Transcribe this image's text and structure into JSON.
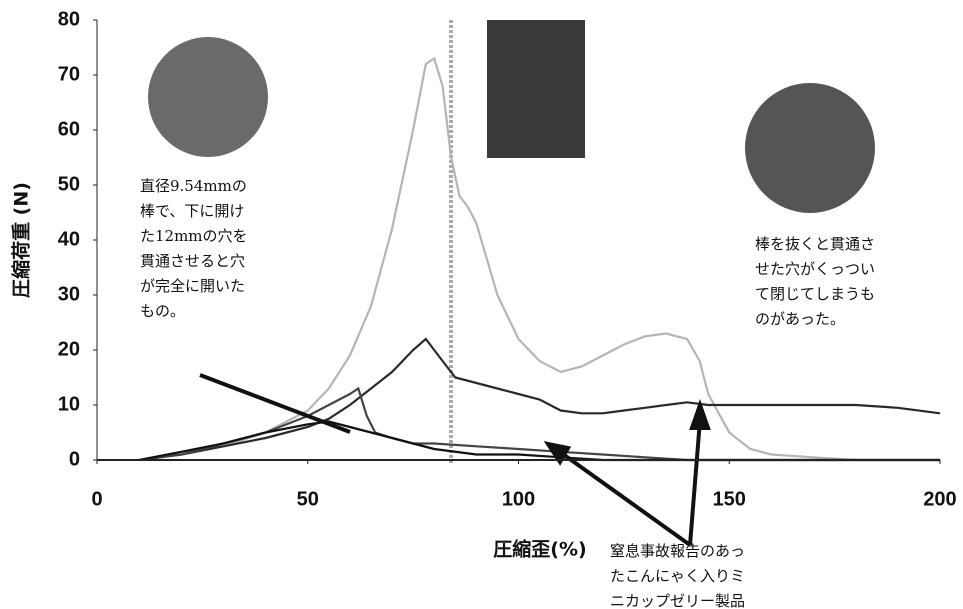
{
  "chart_data": {
    "type": "line",
    "y_label": "圧縮荷重 (N)",
    "x_label": "圧縮歪(%)",
    "xlim": [
      0,
      200
    ],
    "xticks": [
      0,
      50,
      100,
      150,
      200
    ],
    "ylim": [
      0,
      80
    ],
    "yticks": [
      0,
      10,
      20,
      30,
      40,
      50,
      60,
      70,
      80
    ],
    "series": [
      {
        "color": "#b5b5b5",
        "x": [
          10,
          20,
          30,
          40,
          50,
          55,
          60,
          65,
          70,
          75,
          78,
          80,
          82,
          84,
          86,
          88,
          90,
          95,
          100,
          105,
          110,
          115,
          120,
          125,
          130,
          135,
          140,
          143,
          145,
          150,
          155,
          160,
          170,
          180,
          200
        ],
        "values": [
          0,
          1,
          2.5,
          5,
          9,
          13,
          19,
          28,
          42,
          60,
          72,
          73,
          68,
          55,
          48,
          46,
          43,
          30,
          22,
          18,
          16,
          17,
          19,
          21,
          22.5,
          23,
          22,
          18,
          12,
          5,
          2,
          1,
          0.5,
          0,
          0
        ]
      },
      {
        "color": "#2a2a2a",
        "x": [
          10,
          20,
          30,
          40,
          50,
          55,
          60,
          65,
          70,
          75,
          78,
          80,
          83,
          85,
          90,
          95,
          100,
          105,
          110,
          115,
          120,
          125,
          130,
          135,
          140,
          145,
          150,
          160,
          170,
          180,
          190,
          200
        ],
        "values": [
          0,
          1,
          2.5,
          4,
          6,
          7.5,
          10,
          13,
          16,
          20,
          22,
          20,
          17,
          15,
          14,
          13,
          12,
          11,
          9,
          8.5,
          8.5,
          9,
          9.5,
          10,
          10.5,
          10,
          10,
          10,
          10,
          10,
          9.5,
          8.5
        ]
      },
      {
        "color": "#444444",
        "x": [
          10,
          20,
          30,
          40,
          50,
          55,
          60,
          62,
          64,
          66,
          70,
          75,
          80,
          90,
          100,
          110,
          120,
          130,
          140,
          200
        ],
        "values": [
          0,
          1,
          3,
          5,
          8,
          10,
          12,
          13,
          8,
          5,
          4,
          3,
          3,
          2.5,
          2,
          1.5,
          1,
          0.5,
          0,
          0
        ]
      },
      {
        "color": "#111111",
        "x": [
          10,
          20,
          30,
          40,
          50,
          55,
          60,
          65,
          70,
          75,
          80,
          90,
          100,
          110,
          120,
          200
        ],
        "values": [
          0,
          1.5,
          3,
          5,
          6.5,
          7,
          6,
          5,
          4,
          3,
          2,
          1,
          1,
          0.5,
          0,
          0
        ]
      }
    ],
    "annotations": [
      {
        "lines": [
          "直径9.54mmの",
          "棒で、下に開け",
          "た12mmの穴を",
          "貫通させると穴",
          "が完全に開いた",
          "もの。"
        ]
      },
      {
        "lines": [
          "棒を抜くと貫通さ",
          "せた穴がくっつい",
          "て閉じてしまうも",
          "のがあった。"
        ]
      },
      {
        "lines": [
          "窒息事故報告のあっ",
          "たこんにゃく入りミ",
          "ニカップゼリー製品"
        ]
      }
    ]
  }
}
